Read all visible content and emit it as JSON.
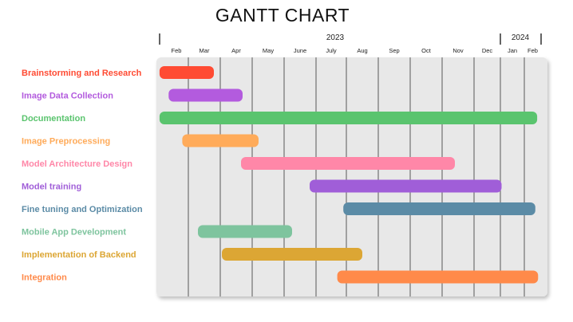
{
  "chart_data": {
    "type": "gantt",
    "title": "GANTT CHART",
    "years": [
      {
        "label": "2023",
        "start": 0,
        "end": 11
      },
      {
        "label": "2024",
        "start": 11,
        "end": 13
      }
    ],
    "months": [
      "Feb",
      "Mar",
      "Apr",
      "May",
      "June",
      "July",
      "Aug",
      "Sep",
      "Oct",
      "Nov",
      "Dec",
      "Jan",
      "Feb"
    ],
    "tasks": [
      {
        "name": "Brainstorming and Research",
        "start": 0.05,
        "end": 1.8,
        "color": "#ff4b33"
      },
      {
        "name": "Image Data Collection",
        "start": 0.35,
        "end": 2.7,
        "color": "#b35bde"
      },
      {
        "name": "Documentation",
        "start": 0.05,
        "end": 12.7,
        "color": "#5ac46e"
      },
      {
        "name": "Image Preprocessing",
        "start": 0.8,
        "end": 3.2,
        "color": "#ffab5a"
      },
      {
        "name": "Model Architecture Design",
        "start": 2.65,
        "end": 9.4,
        "color": "#ff87a8"
      },
      {
        "name": "Model training",
        "start": 4.8,
        "end": 11.05,
        "color": "#a05ed8"
      },
      {
        "name": "Fine tuning and Optimization",
        "start": 5.9,
        "end": 12.6,
        "color": "#5b8ba6"
      },
      {
        "name": "Mobile App Development",
        "start": 1.3,
        "end": 4.25,
        "color": "#7ec49e"
      },
      {
        "name": "Implementation of Backend",
        "start": 2.05,
        "end": 6.5,
        "color": "#dca634"
      },
      {
        "name": "Integration",
        "start": 5.7,
        "end": 12.75,
        "color": "#ff8a4a"
      }
    ]
  }
}
